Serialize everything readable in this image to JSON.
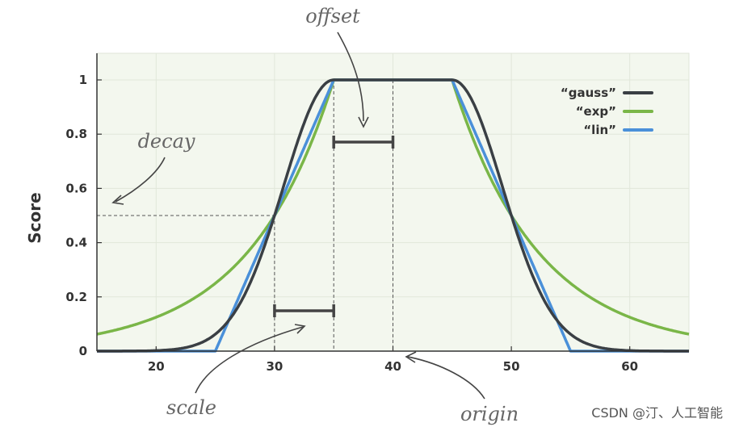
{
  "chart_data": {
    "type": "line",
    "ylabel": "Score",
    "xlabel": "",
    "xlim": [
      15,
      65
    ],
    "ylim": [
      0,
      1.1
    ],
    "xticks": [
      20,
      30,
      40,
      50,
      60
    ],
    "yticks": [
      0,
      0.2,
      0.4,
      0.6,
      0.8,
      1
    ],
    "ytick_labels": [
      "0",
      "0.2",
      "0.4",
      "0.6",
      "0.8",
      "1"
    ],
    "grid": true,
    "legend_position": "top-right",
    "origin": 40,
    "offset": 5,
    "scale": 5,
    "decay": 0.5,
    "series": [
      {
        "name": "“gauss”",
        "color": "#3a3f44",
        "function": "gauss"
      },
      {
        "name": "“exp”",
        "color": "#7ab648",
        "function": "exp"
      },
      {
        "name": "“lin”",
        "color": "#4a90d9",
        "function": "lin"
      }
    ],
    "annotations": {
      "offset": "offset",
      "decay": "decay",
      "scale": "scale",
      "origin": "origin"
    }
  },
  "watermark": "CSDN @汀、人工智能"
}
